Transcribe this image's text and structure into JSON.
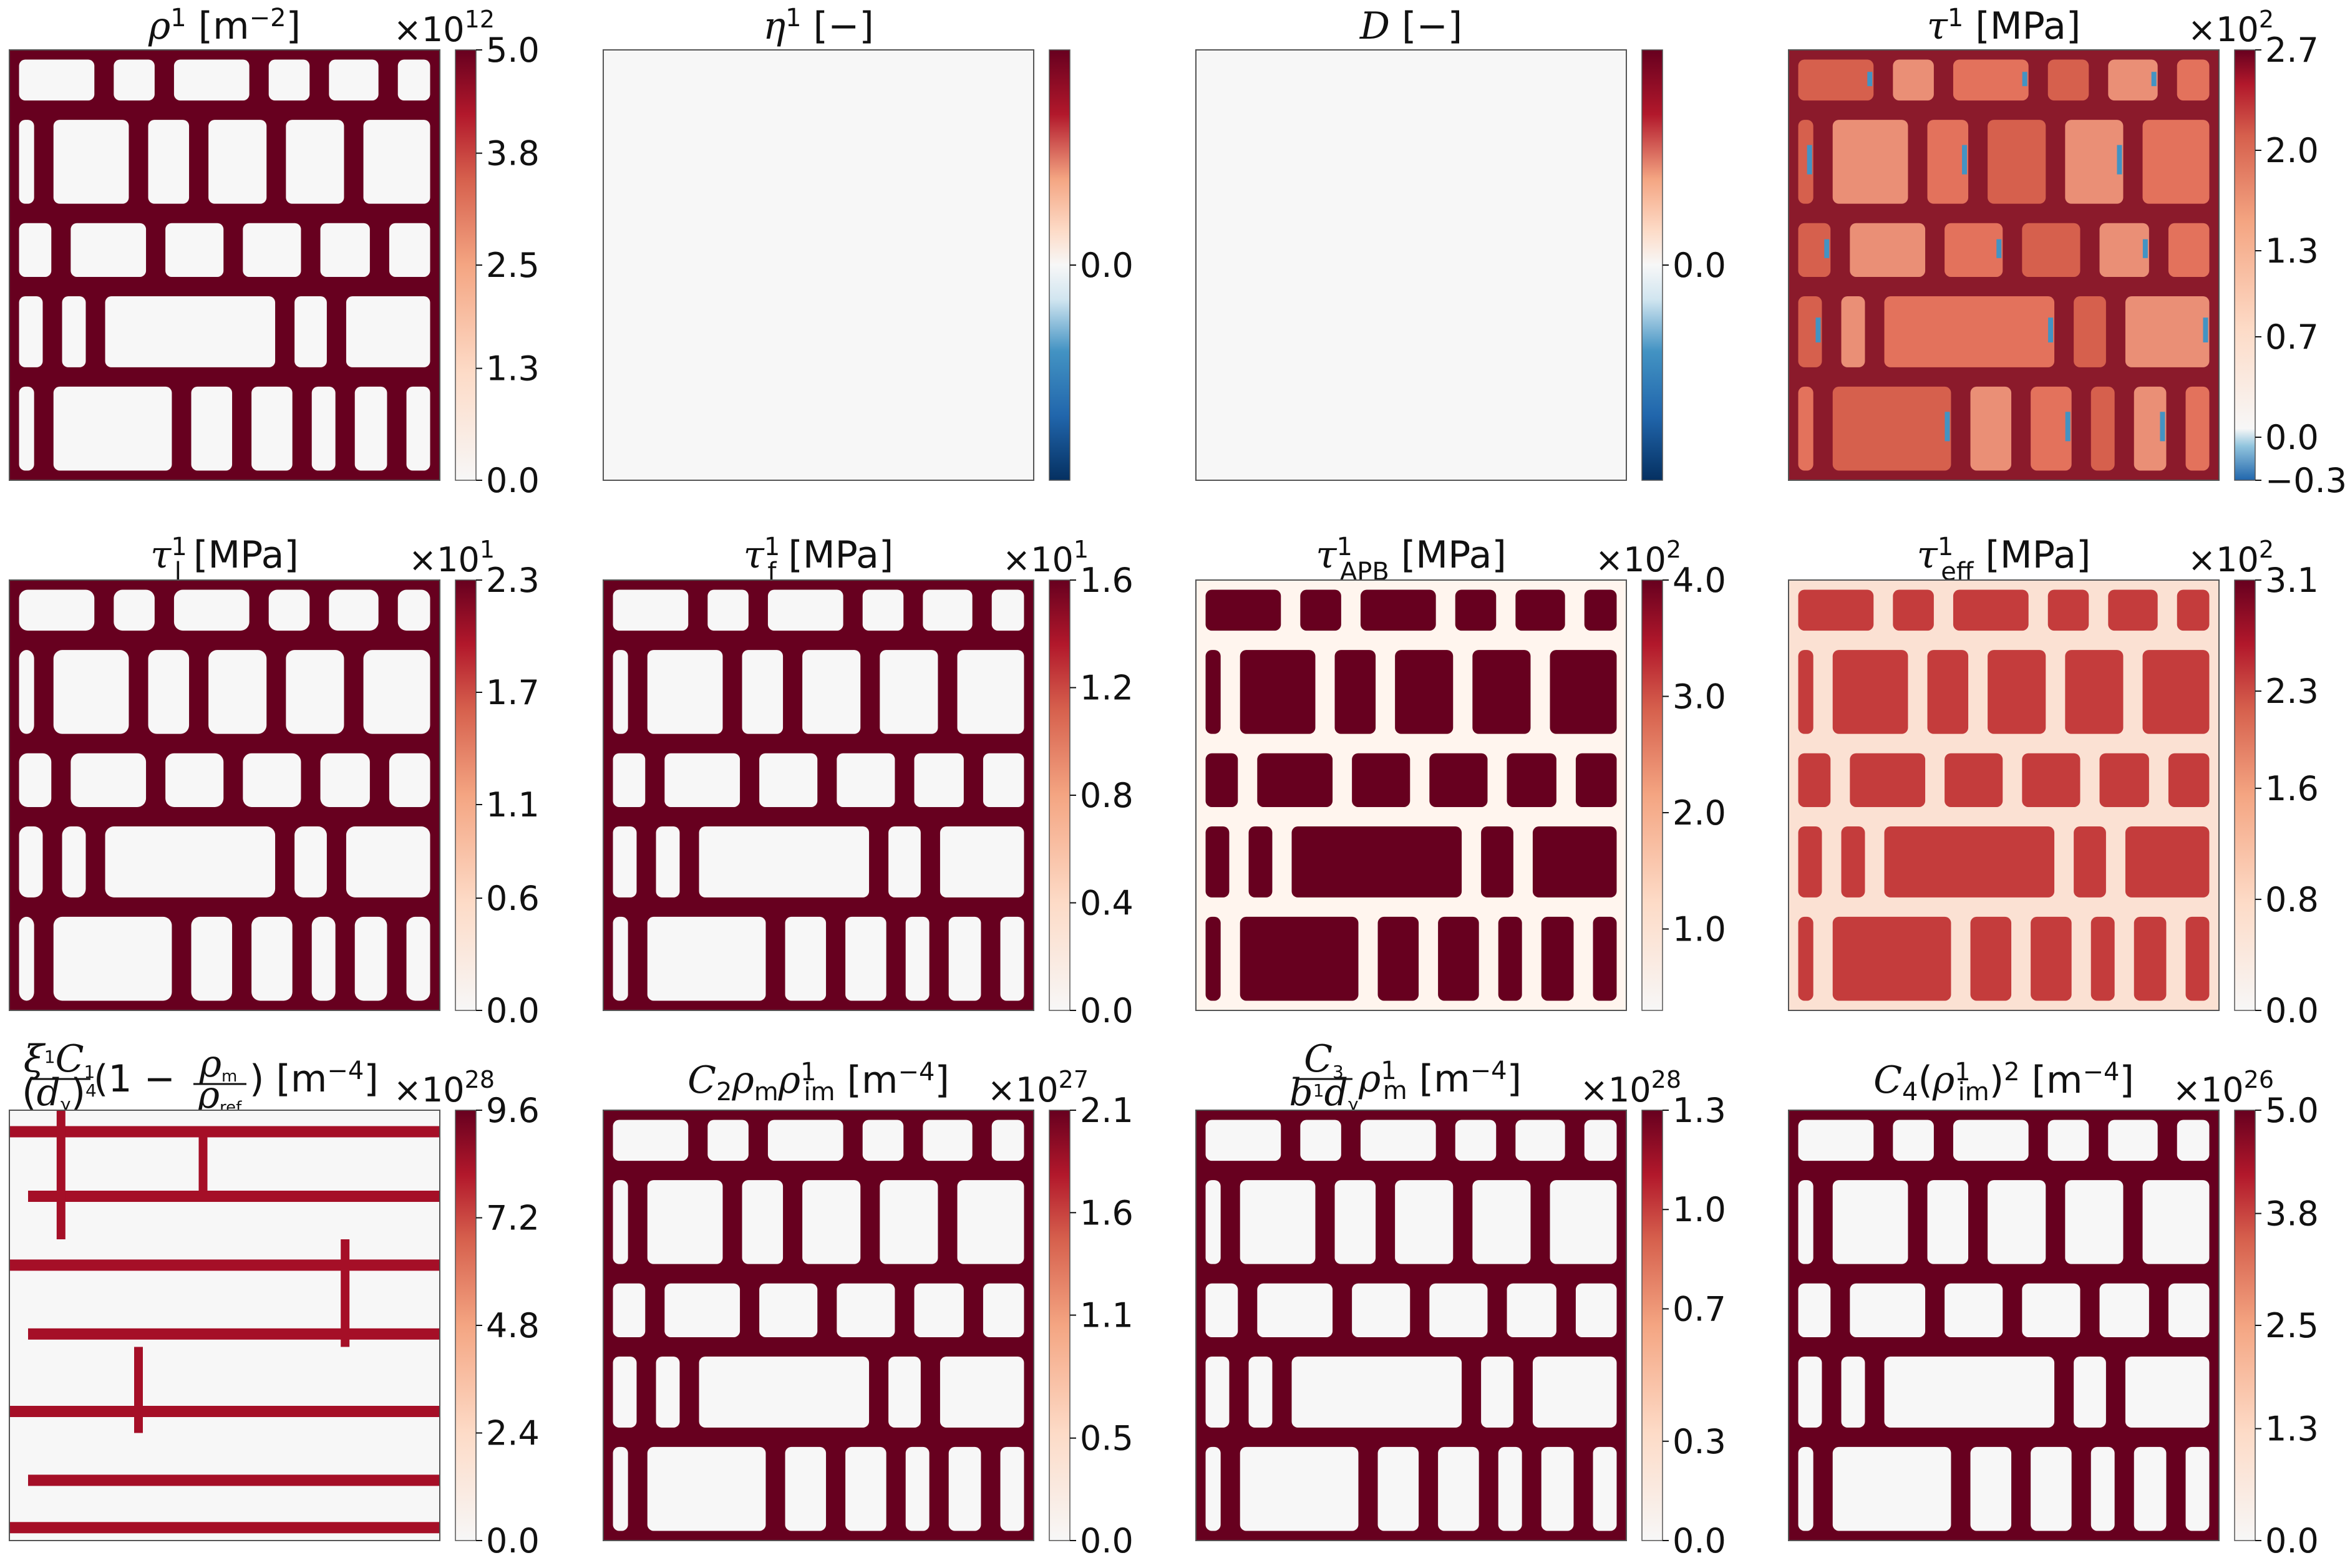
{
  "chart_data": [
    {
      "type": "heatmap",
      "title": "ρ¹ [m⁻²]",
      "colorbar": {
        "ticks": [
          "0.0",
          "1.3",
          "2.5",
          "3.8",
          "5.0"
        ],
        "range": [
          0,
          5.0
        ],
        "multiplier": "×10",
        "exponent": "12"
      },
      "pattern": "network"
    },
    {
      "type": "heatmap",
      "title": "η¹ [−]",
      "colorbar": {
        "ticks": [
          "0.0"
        ],
        "range": [
          -1,
          1
        ],
        "multiplier": "",
        "exponent": ""
      },
      "pattern": "uniform"
    },
    {
      "type": "heatmap",
      "title": "D [−]",
      "colorbar": {
        "ticks": [
          "0.0"
        ],
        "range": [
          -1,
          1
        ],
        "multiplier": "",
        "exponent": ""
      },
      "pattern": "uniform"
    },
    {
      "type": "heatmap",
      "title": "τ¹ [MPa]",
      "colorbar": {
        "ticks": [
          "−0.3",
          "0.0",
          "0.7",
          "1.3",
          "2.0",
          "2.7"
        ],
        "range": [
          -0.3,
          2.7
        ],
        "multiplier": "×10",
        "exponent": "2"
      },
      "pattern": "stress"
    },
    {
      "type": "heatmap",
      "title": "τ¹ₗ [MPa]",
      "colorbar": {
        "ticks": [
          "0.0",
          "0.6",
          "1.1",
          "1.7",
          "2.3"
        ],
        "range": [
          0,
          2.3
        ],
        "multiplier": "×10",
        "exponent": "1"
      },
      "pattern": "network-soft"
    },
    {
      "type": "heatmap",
      "title": "τ¹f [MPa]",
      "colorbar": {
        "ticks": [
          "0.0",
          "0.4",
          "0.8",
          "1.2",
          "1.6"
        ],
        "range": [
          0,
          1.6
        ],
        "multiplier": "×10",
        "exponent": "1"
      },
      "pattern": "network"
    },
    {
      "type": "heatmap",
      "title": "τ¹APB [MPa]",
      "colorbar": {
        "ticks": [
          "1.0",
          "2.0",
          "3.0",
          "4.0"
        ],
        "range": [
          0.3,
          4.0
        ],
        "multiplier": "×10",
        "exponent": "2"
      },
      "pattern": "inverse"
    },
    {
      "type": "heatmap",
      "title": "τ¹eff [MPa]",
      "colorbar": {
        "ticks": [
          "0.0",
          "0.8",
          "1.6",
          "2.3",
          "3.1"
        ],
        "range": [
          0,
          3.1
        ],
        "multiplier": "×10",
        "exponent": "2"
      },
      "pattern": "inverse-stress"
    },
    {
      "type": "heatmap",
      "title": "ξ¹C₁/(d_γ)⁴ (1 − ρ_m/ρ_ref) [m⁻⁴]",
      "colorbar": {
        "ticks": [
          "0.0",
          "2.4",
          "4.8",
          "7.2",
          "9.6"
        ],
        "range": [
          0,
          9.6
        ],
        "multiplier": "×10",
        "exponent": "28"
      },
      "pattern": "horizontal"
    },
    {
      "type": "heatmap",
      "title": "C₂ρ_m ρ¹im [m⁻⁴]",
      "colorbar": {
        "ticks": [
          "0.0",
          "0.5",
          "1.1",
          "1.6",
          "2.1"
        ],
        "range": [
          0,
          2.1
        ],
        "multiplier": "×10",
        "exponent": "27"
      },
      "pattern": "network"
    },
    {
      "type": "heatmap",
      "title": "C₃/(b¹d_γ) ρ¹m [m⁻⁴]",
      "colorbar": {
        "ticks": [
          "0.0",
          "0.3",
          "0.7",
          "1.0",
          "1.3"
        ],
        "range": [
          0,
          1.3
        ],
        "multiplier": "×10",
        "exponent": "28"
      },
      "pattern": "network"
    },
    {
      "type": "heatmap",
      "title": "C₄(ρ¹im)² [m⁻⁴]",
      "colorbar": {
        "ticks": [
          "0.0",
          "1.3",
          "2.5",
          "3.8",
          "5.0"
        ],
        "range": [
          0,
          5.0
        ],
        "multiplier": "×10",
        "exponent": "26"
      },
      "pattern": "network"
    }
  ],
  "colors": {
    "dark_red": "#67001f",
    "mid_red": "#d6604d",
    "light": "#f7f7f7",
    "blue": "#053061",
    "light_blue": "#4393c3",
    "frame": "#555555"
  }
}
